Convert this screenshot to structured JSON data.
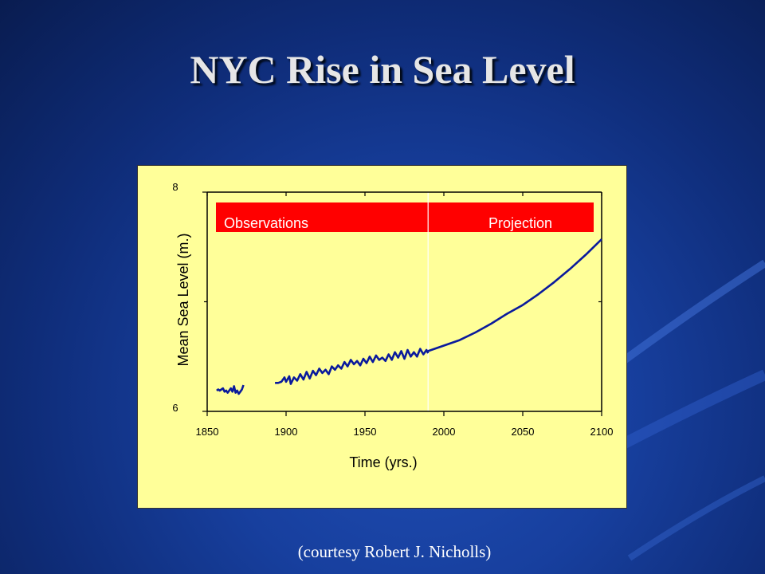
{
  "slide": {
    "title": "NYC Rise in Sea Level",
    "credit": "(courtesy Robert J. Nicholls)"
  },
  "colors": {
    "background": "#173f9e",
    "chart_background": "#ffff99",
    "series": "#0a1a9c",
    "band": "#ff0000"
  },
  "chart_data": {
    "type": "line",
    "title": "",
    "xlabel": "Time (yrs.)",
    "ylabel": "Mean Sea Level (m.)",
    "xlim": [
      1850,
      2100
    ],
    "ylim": [
      6,
      8
    ],
    "x_ticks": [
      1850,
      1900,
      1950,
      2000,
      2050,
      2100
    ],
    "y_ticks": [
      6,
      8
    ],
    "grid": false,
    "divider_year": 1990,
    "band_labels": [
      "Observations",
      "Projection"
    ],
    "series": [
      {
        "values": [
          [
            1856,
            6.19
          ],
          [
            1857,
            6.2
          ],
          [
            1858,
            6.19
          ],
          [
            1859,
            6.2
          ],
          [
            1860,
            6.21
          ],
          [
            1861,
            6.18
          ],
          [
            1862,
            6.19
          ],
          [
            1863,
            6.17
          ],
          [
            1864,
            6.19
          ],
          [
            1865,
            6.21
          ],
          [
            1866,
            6.18
          ],
          [
            1867,
            6.23
          ],
          [
            1868,
            6.17
          ],
          [
            1869,
            6.19
          ],
          [
            1870,
            6.16
          ],
          [
            1871,
            6.18
          ],
          [
            1872,
            6.2
          ],
          [
            1873,
            6.24
          ]
        ]
      },
      {
        "values": [
          [
            1893,
            6.26
          ],
          [
            1895,
            6.26
          ],
          [
            1897,
            6.27
          ],
          [
            1899,
            6.31
          ],
          [
            1900,
            6.27
          ],
          [
            1902,
            6.32
          ],
          [
            1903,
            6.25
          ],
          [
            1905,
            6.31
          ],
          [
            1907,
            6.28
          ],
          [
            1909,
            6.34
          ],
          [
            1911,
            6.29
          ],
          [
            1913,
            6.36
          ],
          [
            1915,
            6.3
          ],
          [
            1917,
            6.37
          ],
          [
            1919,
            6.33
          ],
          [
            1921,
            6.39
          ],
          [
            1923,
            6.35
          ],
          [
            1925,
            6.38
          ],
          [
            1927,
            6.34
          ],
          [
            1929,
            6.41
          ],
          [
            1931,
            6.38
          ],
          [
            1933,
            6.42
          ],
          [
            1935,
            6.39
          ],
          [
            1937,
            6.45
          ],
          [
            1939,
            6.41
          ],
          [
            1941,
            6.47
          ],
          [
            1943,
            6.43
          ],
          [
            1945,
            6.46
          ],
          [
            1947,
            6.42
          ],
          [
            1949,
            6.48
          ],
          [
            1951,
            6.44
          ],
          [
            1953,
            6.5
          ],
          [
            1955,
            6.45
          ],
          [
            1957,
            6.51
          ],
          [
            1959,
            6.47
          ],
          [
            1961,
            6.49
          ],
          [
            1963,
            6.46
          ],
          [
            1965,
            6.52
          ],
          [
            1967,
            6.47
          ],
          [
            1969,
            6.54
          ],
          [
            1971,
            6.49
          ],
          [
            1973,
            6.55
          ],
          [
            1975,
            6.48
          ],
          [
            1977,
            6.56
          ],
          [
            1979,
            6.5
          ],
          [
            1981,
            6.54
          ],
          [
            1983,
            6.5
          ],
          [
            1985,
            6.57
          ],
          [
            1987,
            6.52
          ],
          [
            1989,
            6.56
          ],
          [
            1990,
            6.53
          ]
        ]
      },
      {
        "values": [
          [
            1990,
            6.55
          ],
          [
            2000,
            6.6
          ],
          [
            2010,
            6.65
          ],
          [
            2020,
            6.72
          ],
          [
            2030,
            6.8
          ],
          [
            2040,
            6.89
          ],
          [
            2050,
            6.97
          ],
          [
            2060,
            7.07
          ],
          [
            2070,
            7.18
          ],
          [
            2080,
            7.3
          ],
          [
            2090,
            7.43
          ],
          [
            2100,
            7.57
          ]
        ]
      }
    ]
  }
}
